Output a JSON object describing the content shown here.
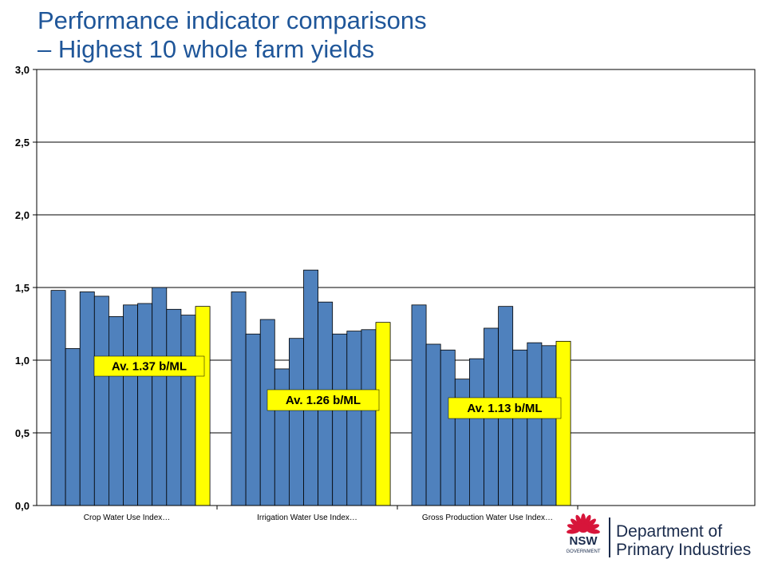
{
  "title": "Performance indicator comparisons\n– Highest 10 whole farm yields",
  "chart_data": {
    "type": "bar",
    "title": "Performance indicator comparisons – Highest 10 whole farm yields",
    "xlabel": "",
    "ylabel": "",
    "ylim": [
      0,
      3
    ],
    "yticks": [
      "0,0",
      "0,5",
      "1,0",
      "1,5",
      "2,0",
      "2,5",
      "3,0"
    ],
    "grid": true,
    "categories": [
      "Crop Water Use Index…",
      "Irrigation Water Use Index…",
      "Gross Production Water Use Index…"
    ],
    "bar_color": "#4f81bd",
    "average_color": "#ffff00",
    "groups": [
      {
        "category": "Crop Water Use Index…",
        "values": [
          1.48,
          1.08,
          1.47,
          1.44,
          1.3,
          1.38,
          1.39,
          1.5,
          1.35,
          1.31
        ],
        "average": 1.37,
        "average_label": "Av. 1.37 b/ML"
      },
      {
        "category": "Irrigation Water Use Index…",
        "values": [
          1.47,
          1.18,
          1.28,
          0.94,
          1.15,
          1.62,
          1.4,
          1.18,
          1.2,
          1.21
        ],
        "average": 1.26,
        "average_label": "Av. 1.26 b/ML"
      },
      {
        "category": "Gross Production Water Use Index…",
        "values": [
          1.38,
          1.11,
          1.07,
          0.87,
          1.01,
          1.22,
          1.37,
          1.07,
          1.12,
          1.1
        ],
        "average": 1.13,
        "average_label": "Av. 1.13 b/ML"
      }
    ]
  },
  "logo": {
    "nsw": "NSW",
    "government": "GOVERNMENT",
    "line1": "Department of",
    "line2": "Primary Industries",
    "text_color": "#1a2b4c",
    "waratah_color": "#d7153a"
  }
}
